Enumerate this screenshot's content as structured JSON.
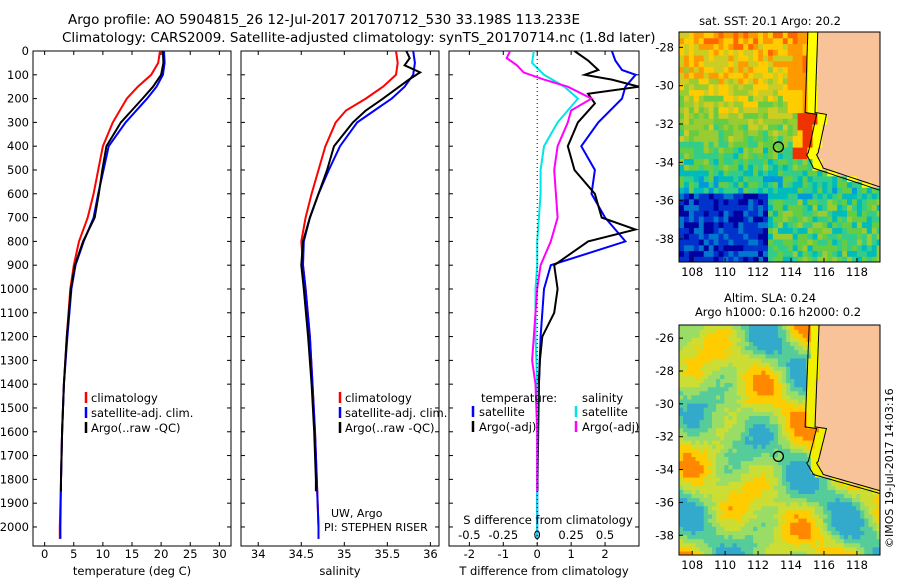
{
  "titles": {
    "line1": "Argo profile: AO 5904815_26 12-Jul-2017 20170712_530 33.198S 113.233E",
    "line2": "Climatology: CARS2009. Satellite-adjusted climatology: synTS_20170714.nc (1.8d later)"
  },
  "colors": {
    "climatology": "#ff0000",
    "satellite": "#0000ff",
    "argo": "#000000",
    "sal_satellite": "#00e6e6",
    "sal_argo": "#ff00ff",
    "land": "#f9c39a",
    "coast_band": "#f0f000"
  },
  "chart_data": [
    {
      "type": "line",
      "title": "",
      "xlabel": "temperature (deg C)",
      "xlim": [
        -2,
        32
      ],
      "xticks": [
        0,
        5,
        10,
        15,
        20,
        25,
        30
      ],
      "ylim": [
        2080,
        0
      ],
      "yticks": [
        0,
        100,
        200,
        300,
        400,
        500,
        600,
        700,
        800,
        900,
        1000,
        1100,
        1200,
        1300,
        1400,
        1500,
        1600,
        1700,
        1800,
        1900,
        2000
      ],
      "legend": [
        "climatology",
        "satellite-adj. clim.",
        "Argo(..raw -QC)"
      ],
      "legend_position": "lower-center",
      "series": [
        {
          "name": "climatology",
          "color": "climatology",
          "depth": [
            0,
            50,
            100,
            150,
            200,
            300,
            400,
            500,
            600,
            700,
            800,
            900,
            1000,
            1200,
            1400,
            1600,
            1800,
            2000,
            2050
          ],
          "values": [
            19.8,
            19.5,
            18.3,
            16.0,
            14.1,
            11.7,
            10.0,
            9.2,
            8.4,
            7.4,
            5.9,
            5.0,
            4.4,
            3.8,
            3.3,
            3.0,
            2.8,
            2.6,
            2.6
          ]
        },
        {
          "name": "satellite-adj. clim.",
          "color": "satellite",
          "depth": [
            0,
            50,
            100,
            150,
            200,
            300,
            400,
            500,
            600,
            700,
            800,
            900,
            1000,
            1200,
            1400,
            1600,
            1800,
            2000,
            2050
          ],
          "values": [
            20.5,
            20.6,
            20.3,
            19.2,
            17.6,
            13.9,
            11.0,
            10.1,
            9.2,
            8.4,
            6.7,
            5.3,
            4.6,
            3.9,
            3.3,
            3.0,
            2.8,
            2.7,
            2.7
          ]
        },
        {
          "name": "Argo(..raw -QC)",
          "color": "argo",
          "depth": [
            0,
            50,
            100,
            150,
            200,
            300,
            400,
            500,
            600,
            700,
            800,
            900,
            1000,
            1200,
            1400,
            1600,
            1800,
            1850
          ],
          "values": [
            20.3,
            20.4,
            20.0,
            18.6,
            16.8,
            13.1,
            10.6,
            9.9,
            9.3,
            8.6,
            6.6,
            5.2,
            4.5,
            3.8,
            3.3,
            3.0,
            2.8,
            2.8
          ]
        }
      ]
    },
    {
      "type": "line",
      "title": "",
      "xlabel": "salinity",
      "xlim": [
        33.8,
        36.1
      ],
      "xticks": [
        34,
        34.5,
        35,
        35.5,
        36
      ],
      "ylim": [
        2080,
        0
      ],
      "legend": [
        "climatology",
        "satellite-adj. clim.",
        "Argo(..raw -QC)"
      ],
      "legend_position": "lower-center",
      "annotations": [
        "UW, Argo",
        "PI: STEPHEN RISER"
      ],
      "series": [
        {
          "name": "climatology",
          "color": "climatology",
          "depth": [
            0,
            50,
            100,
            150,
            200,
            250,
            300,
            400,
            500,
            600,
            700,
            800,
            900,
            1000,
            1200,
            1400,
            1600,
            1800,
            2000,
            2050
          ],
          "values": [
            35.6,
            35.62,
            35.6,
            35.45,
            35.25,
            35.02,
            34.9,
            34.78,
            34.7,
            34.62,
            34.55,
            34.5,
            34.52,
            34.55,
            34.6,
            34.63,
            34.66,
            34.68,
            34.7,
            34.7
          ]
        },
        {
          "name": "satellite-adj. clim.",
          "color": "satellite",
          "depth": [
            0,
            50,
            100,
            150,
            200,
            250,
            300,
            400,
            500,
            600,
            700,
            800,
            900,
            1000,
            1200,
            1400,
            1600,
            1800,
            2000,
            2050
          ],
          "values": [
            35.8,
            35.82,
            35.8,
            35.7,
            35.55,
            35.35,
            35.15,
            34.95,
            34.82,
            34.7,
            34.6,
            34.53,
            34.52,
            34.55,
            34.6,
            34.63,
            34.66,
            34.68,
            34.7,
            34.7
          ]
        },
        {
          "name": "Argo(..raw -QC)",
          "color": "argo",
          "depth": [
            0,
            30,
            60,
            90,
            120,
            160,
            200,
            250,
            300,
            400,
            500,
            600,
            700,
            800,
            900,
            1000,
            1200,
            1400,
            1600,
            1800,
            1850
          ],
          "values": [
            35.72,
            35.76,
            35.7,
            35.88,
            35.75,
            35.6,
            35.45,
            35.25,
            35.1,
            34.88,
            34.8,
            34.7,
            34.6,
            34.52,
            34.5,
            34.53,
            34.58,
            34.62,
            34.65,
            34.67,
            34.67
          ]
        }
      ]
    },
    {
      "type": "line",
      "title": "",
      "xlabel": "T difference from climatology",
      "xlabel2": "S difference from climatology",
      "xlim": [
        -2.6,
        3.0
      ],
      "xticks": [
        -2,
        -1,
        0,
        1,
        2
      ],
      "xticks_top_labels": [
        "-0.5",
        "-0.25",
        "0",
        "0.25",
        "0.5"
      ],
      "xticks_top_values": [
        -2,
        -1,
        0,
        1,
        2
      ],
      "ylim": [
        2080,
        0
      ],
      "legend_headers": [
        "temperature:",
        "salinity"
      ],
      "legend": [
        "satellite",
        "Argo(-adj)",
        "satellite",
        "Argo(-adj)"
      ],
      "legend_position": "lower-center",
      "series": [
        {
          "name": "satellite",
          "color": "satellite",
          "depth": [
            0,
            40,
            80,
            100,
            150,
            200,
            300,
            400,
            500,
            600,
            700,
            750,
            800,
            900,
            1000,
            1200,
            1400,
            1600,
            1800,
            2000,
            2050
          ],
          "values": [
            2.2,
            2.3,
            2.5,
            2.9,
            2.6,
            2.5,
            1.8,
            1.3,
            1.7,
            1.6,
            2.0,
            2.3,
            2.6,
            0.4,
            0.2,
            0.1,
            0.05,
            0.02,
            0,
            0,
            0
          ]
        },
        {
          "name": "Argo(-adj)",
          "color": "argo",
          "depth": [
            0,
            40,
            80,
            100,
            120,
            150,
            180,
            220,
            300,
            400,
            500,
            600,
            700,
            750,
            800,
            900,
            1000,
            1100,
            1200,
            1300,
            1400,
            1600,
            1800,
            1850
          ],
          "values": [
            1.1,
            1.5,
            1.8,
            1.4,
            2.2,
            3.0,
            1.5,
            1.7,
            1.2,
            0.9,
            1.1,
            1.7,
            1.9,
            2.9,
            1.5,
            0.5,
            0.6,
            0.5,
            0.15,
            0.08,
            0.05,
            0.03,
            0.01,
            0.01
          ]
        },
        {
          "name": "satellite",
          "color": "sal_satellite",
          "depth": [
            0,
            50,
            100,
            150,
            200,
            300,
            400,
            500,
            600,
            700,
            800,
            900,
            1000,
            1200,
            1400,
            1600,
            1800,
            2000,
            2050
          ],
          "values": [
            -0.1,
            -0.15,
            0.2,
            0.8,
            1.2,
            0.6,
            0.2,
            0.1,
            0.1,
            0.05,
            0,
            0,
            -0.05,
            -0.05,
            0,
            0,
            0,
            0,
            0
          ]
        },
        {
          "name": "Argo(-adj)",
          "color": "sal_argo",
          "depth": [
            0,
            30,
            60,
            90,
            120,
            150,
            200,
            250,
            300,
            400,
            500,
            600,
            700,
            800,
            900,
            1000,
            1200,
            1300,
            1400,
            1600,
            1800,
            1850
          ],
          "values": [
            -0.8,
            -0.9,
            -0.6,
            -0.4,
            0.2,
            0.9,
            1.6,
            1.0,
            0.9,
            0.6,
            0.5,
            0.55,
            0.6,
            0.4,
            0.1,
            0.0,
            -0.1,
            -0.15,
            -0.05,
            0,
            0,
            0
          ]
        }
      ]
    },
    {
      "type": "heatmap",
      "title": "sat. SST: 20.1  Argo: 20.2",
      "xticks": [
        108,
        110,
        112,
        114,
        116,
        118
      ],
      "yticks": [
        -28,
        -30,
        -32,
        -34,
        -36,
        -38
      ],
      "xlim": [
        107.2,
        119.4
      ],
      "ylim": [
        -39.2,
        -27.2
      ],
      "marker": {
        "lon": 113.233,
        "lat": -33.198
      }
    },
    {
      "type": "heatmap",
      "title": "Altim. SLA: 0.24",
      "subtitle": "Argo h1000: 0.16 h2000: 0.2",
      "xticks": [
        108,
        110,
        112,
        114,
        116,
        118
      ],
      "yticks": [
        -26,
        -28,
        -30,
        -32,
        -34,
        -36,
        -38
      ],
      "xlim": [
        107.2,
        119.4
      ],
      "ylim": [
        -39.2,
        -25.2
      ],
      "marker": {
        "lon": 113.233,
        "lat": -33.198
      }
    }
  ],
  "side_label": "©IMOS 19-Jul-2017 14:03:16"
}
